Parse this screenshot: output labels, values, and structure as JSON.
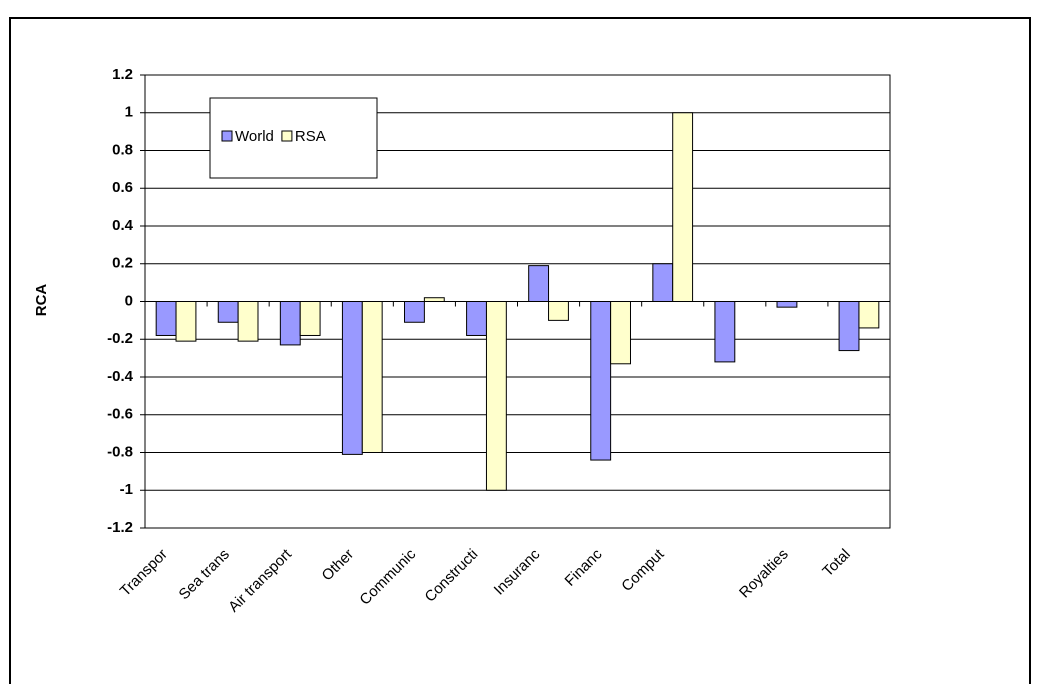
{
  "chart_data": {
    "type": "bar",
    "y_label": "RCA",
    "categories": [
      "Transpor",
      "Sea trans",
      "Air transport",
      "Other",
      "Communic",
      "Constructi",
      "Insuranc",
      "Financ",
      "Comput",
      null,
      "Royalties",
      "Total"
    ],
    "series": [
      {
        "name": "World",
        "color": "#9999ff",
        "values": [
          -0.18,
          -0.11,
          -0.23,
          -0.81,
          -0.11,
          -0.18,
          0.19,
          -0.84,
          0.2,
          -0.32,
          -0.03,
          -0.26
        ]
      },
      {
        "name": "RSA",
        "color": "#ffffcc",
        "values": [
          -0.21,
          -0.21,
          -0.18,
          -0.8,
          0.02,
          -1.0,
          -0.1,
          -0.33,
          1.0,
          0,
          0,
          -0.14
        ]
      }
    ],
    "ylim": [
      -1.2,
      1.2
    ],
    "yticks": [
      -1.2,
      -1,
      -0.8,
      -0.6,
      -0.4,
      -0.2,
      0,
      0.2,
      0.4,
      0.6,
      0.8,
      1,
      1.2
    ],
    "grid": true
  }
}
